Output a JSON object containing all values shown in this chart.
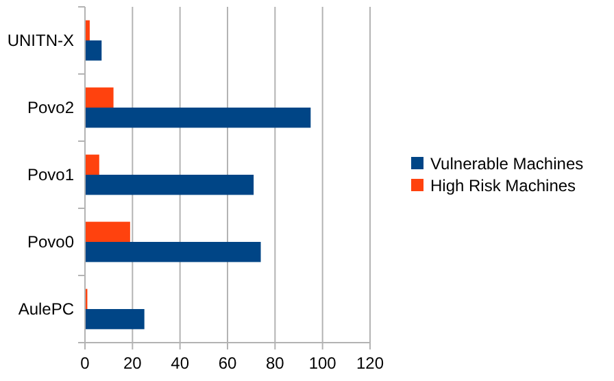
{
  "chart_data": {
    "type": "bar",
    "orientation": "horizontal",
    "categories": [
      "UNITN-X",
      "Povo2",
      "Povo1",
      "Povo0",
      "AulePC"
    ],
    "series": [
      {
        "name": "Vulnerable Machines",
        "color": "#004586",
        "values": [
          7,
          95,
          71,
          74,
          25
        ]
      },
      {
        "name": "High Risk Machines",
        "color": "#ff420e",
        "values": [
          2,
          12,
          6,
          19,
          1
        ]
      }
    ],
    "xlim": [
      0,
      120
    ],
    "xticks": [
      0,
      20,
      40,
      60,
      80,
      100,
      120
    ],
    "grid": "x",
    "legend": "right"
  }
}
